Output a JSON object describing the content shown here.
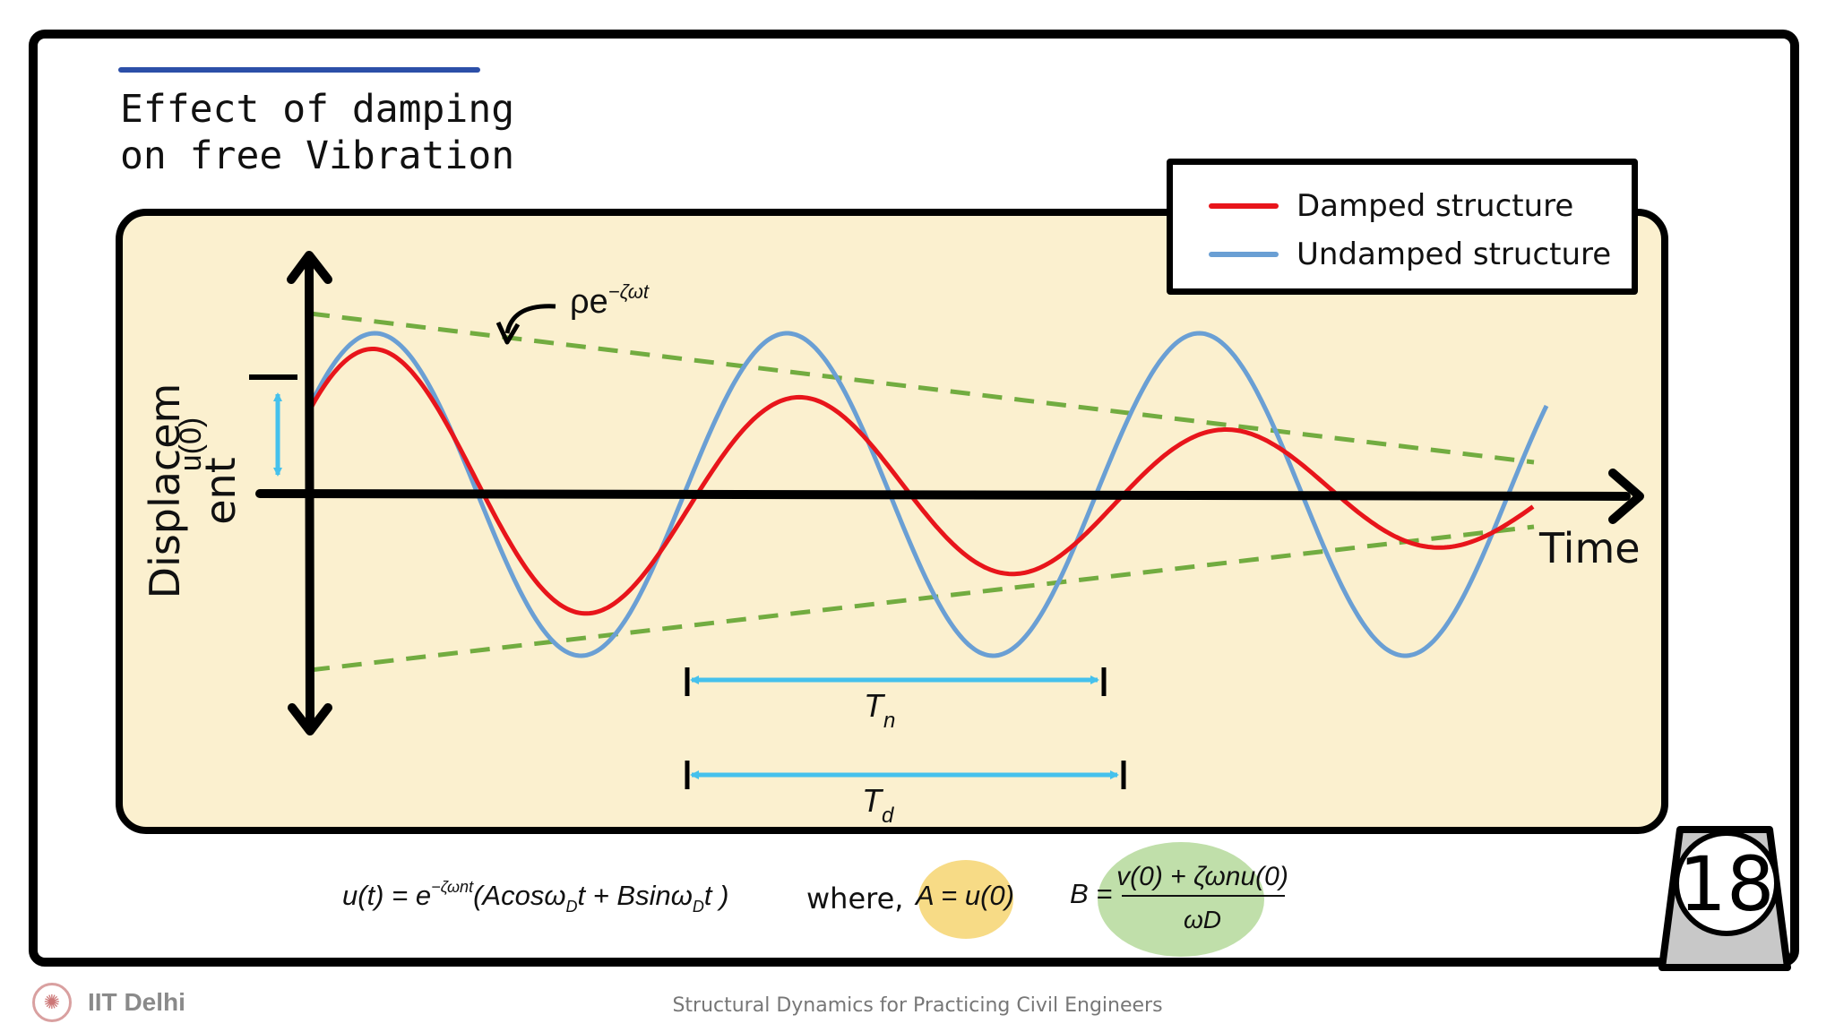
{
  "slide": {
    "title_line1": "Effect of damping",
    "title_line2": "on free Vibration",
    "page_number": "18"
  },
  "diagram": {
    "y_axis_label_line1": "Displacem",
    "y_axis_label_line2": "ent",
    "x_axis_label": "Time",
    "envelope_label": "ρe",
    "envelope_exponent": "−ζωt",
    "u0_label": "u(0)",
    "Tn_label": "T",
    "Tn_sub": "n",
    "Td_label": "T",
    "Td_sub": "d"
  },
  "legend": {
    "items": [
      {
        "label": "Damped structure",
        "color": "#e8151b"
      },
      {
        "label": "Undamped structure",
        "color": "#6a9fd4"
      }
    ]
  },
  "equations": {
    "motion_lhs": "u(t) = e",
    "motion_exp": "−ζωnt",
    "motion_rhs": "(Acosω",
    "motion_rhs_sub": "D",
    "motion_rhs2": "t + Bsinω",
    "motion_rhs2_sub": "D",
    "motion_rhs3": "t )",
    "where_text": "where,",
    "A_eq": "A = u(0)",
    "B_lhs": "B =",
    "B_num": "v(0) + ζωnu(0)",
    "B_den": "ωD"
  },
  "footer": {
    "org": "IIT Delhi",
    "course": "Structural Dynamics for Practicing Civil Engineers"
  },
  "colors": {
    "panel_bg": "#fbf0cf",
    "damped": "#e8151b",
    "undamped": "#6a9fd4",
    "envelope": "#72ac40",
    "arrow": "#45c1ec",
    "highlight_A": "#f7db86",
    "highlight_B": "#c0dfaa"
  }
}
